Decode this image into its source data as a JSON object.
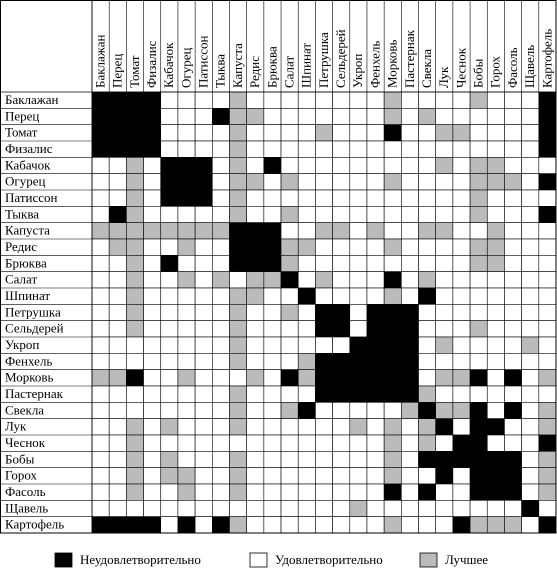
{
  "vegetables": [
    "Баклажан",
    "Перец",
    "Томат",
    "Физалис",
    "Кабачок",
    "Огурец",
    "Патиссон",
    "Тыква",
    "Капуста",
    "Редис",
    "Брюква",
    "Салат",
    "Шпинат",
    "Петрушка",
    "Сельдерей",
    "Укроп",
    "Фенхель",
    "Морковь",
    "Пастернак",
    "Свекла",
    "Лук",
    "Чеснок",
    "Бобы",
    "Горох",
    "Фасоль",
    "Щавель",
    "Картофель"
  ],
  "legend": [
    {
      "label": "Неудовлетворительно",
      "color": "#000"
    },
    {
      "label": "Удовлетворительно",
      "color": "#fff"
    },
    {
      "label": "Лучшее",
      "color": "#bbb"
    }
  ],
  "matrix": [
    [
      "#000",
      "#000",
      "#000",
      "#000",
      "#fff",
      "#fff",
      "#fff",
      "#fff",
      "#bbb",
      "#fff",
      "#fff",
      "#fff",
      "#fff",
      "#fff",
      "#fff",
      "#fff",
      "#fff",
      "#bbb",
      "#fff",
      "#fff",
      "#fff",
      "#fff",
      "#bbb",
      "#fff",
      "#fff",
      "#fff",
      "#000"
    ],
    [
      "#000",
      "#000",
      "#000",
      "#000",
      "#fff",
      "#fff",
      "#fff",
      "#000",
      "#bbb",
      "#bbb",
      "#fff",
      "#fff",
      "#fff",
      "#fff",
      "#fff",
      "#fff",
      "#fff",
      "#bbb",
      "#fff",
      "#bbb",
      "#fff",
      "#fff",
      "#fff",
      "#fff",
      "#fff",
      "#fff",
      "#000"
    ],
    [
      "#000",
      "#000",
      "#000",
      "#000",
      "#fff",
      "#fff",
      "#fff",
      "#fff",
      "#bbb",
      "#fff",
      "#fff",
      "#fff",
      "#fff",
      "#bbb",
      "#fff",
      "#fff",
      "#fff",
      "#000",
      "#fff",
      "#fff",
      "#bbb",
      "#bbb",
      "#fff",
      "#fff",
      "#fff",
      "#fff",
      "#000"
    ],
    [
      "#000",
      "#000",
      "#000",
      "#000",
      "#fff",
      "#fff",
      "#fff",
      "#fff",
      "#bbb",
      "#fff",
      "#fff",
      "#fff",
      "#fff",
      "#fff",
      "#fff",
      "#fff",
      "#fff",
      "#fff",
      "#fff",
      "#fff",
      "#fff",
      "#fff",
      "#fff",
      "#fff",
      "#fff",
      "#fff",
      "#000"
    ],
    [
      "#fff",
      "#fff",
      "#bbb",
      "#fff",
      "#000",
      "#000",
      "#000",
      "#fff",
      "#bbb",
      "#fff",
      "#000",
      "#fff",
      "#fff",
      "#fff",
      "#fff",
      "#fff",
      "#fff",
      "#fff",
      "#fff",
      "#fff",
      "#bbb",
      "#fff",
      "#bbb",
      "#bbb",
      "#fff",
      "#fff",
      "#fff"
    ],
    [
      "#fff",
      "#fff",
      "#bbb",
      "#fff",
      "#000",
      "#000",
      "#000",
      "#fff",
      "#bbb",
      "#bbb",
      "#fff",
      "#bbb",
      "#fff",
      "#fff",
      "#fff",
      "#fff",
      "#fff",
      "#bbb",
      "#fff",
      "#fff",
      "#fff",
      "#fff",
      "#bbb",
      "#bbb",
      "#bbb",
      "#fff",
      "#000"
    ],
    [
      "#fff",
      "#fff",
      "#bbb",
      "#fff",
      "#000",
      "#000",
      "#000",
      "#fff",
      "#bbb",
      "#fff",
      "#fff",
      "#fff",
      "#fff",
      "#fff",
      "#fff",
      "#fff",
      "#fff",
      "#fff",
      "#fff",
      "#fff",
      "#fff",
      "#fff",
      "#bbb",
      "#fff",
      "#fff",
      "#fff",
      "#fff"
    ],
    [
      "#fff",
      "#000",
      "#bbb",
      "#fff",
      "#fff",
      "#fff",
      "#fff",
      "#fff",
      "#bbb",
      "#fff",
      "#fff",
      "#bbb",
      "#fff",
      "#fff",
      "#fff",
      "#fff",
      "#fff",
      "#fff",
      "#fff",
      "#fff",
      "#fff",
      "#fff",
      "#bbb",
      "#fff",
      "#fff",
      "#fff",
      "#000"
    ],
    [
      "#bbb",
      "#bbb",
      "#bbb",
      "#bbb",
      "#bbb",
      "#bbb",
      "#bbb",
      "#bbb",
      "#000",
      "#000",
      "#000",
      "#fff",
      "#fff",
      "#bbb",
      "#bbb",
      "#fff",
      "#bbb",
      "#fff",
      "#fff",
      "#bbb",
      "#bbb",
      "#fff",
      "#fff",
      "#bbb",
      "#fff",
      "#fff",
      "#fff"
    ],
    [
      "#fff",
      "#bbb",
      "#bbb",
      "#fff",
      "#fff",
      "#bbb",
      "#fff",
      "#fff",
      "#000",
      "#000",
      "#000",
      "#bbb",
      "#bbb",
      "#fff",
      "#fff",
      "#fff",
      "#fff",
      "#bbb",
      "#fff",
      "#fff",
      "#fff",
      "#fff",
      "#bbb",
      "#bbb",
      "#fff",
      "#fff",
      "#fff"
    ],
    [
      "#fff",
      "#fff",
      "#bbb",
      "#fff",
      "#000",
      "#fff",
      "#fff",
      "#fff",
      "#000",
      "#000",
      "#000",
      "#bbb",
      "#fff",
      "#fff",
      "#fff",
      "#fff",
      "#fff",
      "#fff",
      "#fff",
      "#fff",
      "#fff",
      "#fff",
      "#bbb",
      "#bbb",
      "#fff",
      "#fff",
      "#fff"
    ],
    [
      "#fff",
      "#fff",
      "#bbb",
      "#fff",
      "#fff",
      "#bbb",
      "#fff",
      "#bbb",
      "#fff",
      "#bbb",
      "#bbb",
      "#000",
      "#fff",
      "#bbb",
      "#fff",
      "#fff",
      "#fff",
      "#000",
      "#fff",
      "#bbb",
      "#fff",
      "#fff",
      "#fff",
      "#fff",
      "#fff",
      "#fff",
      "#fff"
    ],
    [
      "#fff",
      "#fff",
      "#bbb",
      "#fff",
      "#fff",
      "#fff",
      "#fff",
      "#fff",
      "#bbb",
      "#bbb",
      "#fff",
      "#fff",
      "#000",
      "#fff",
      "#fff",
      "#fff",
      "#fff",
      "#bbb",
      "#fff",
      "#000",
      "#fff",
      "#fff",
      "#fff",
      "#fff",
      "#fff",
      "#fff",
      "#fff"
    ],
    [
      "#fff",
      "#fff",
      "#bbb",
      "#fff",
      "#fff",
      "#fff",
      "#fff",
      "#fff",
      "#bbb",
      "#fff",
      "#fff",
      "#bbb",
      "#fff",
      "#000",
      "#000",
      "#fff",
      "#000",
      "#000",
      "#000",
      "#fff",
      "#fff",
      "#fff",
      "#fff",
      "#fff",
      "#fff",
      "#fff",
      "#fff"
    ],
    [
      "#fff",
      "#fff",
      "#bbb",
      "#fff",
      "#fff",
      "#fff",
      "#fff",
      "#fff",
      "#bbb",
      "#fff",
      "#fff",
      "#fff",
      "#fff",
      "#000",
      "#000",
      "#fff",
      "#000",
      "#000",
      "#000",
      "#fff",
      "#fff",
      "#fff",
      "#bbb",
      "#fff",
      "#fff",
      "#fff",
      "#fff"
    ],
    [
      "#fff",
      "#fff",
      "#fff",
      "#fff",
      "#fff",
      "#fff",
      "#fff",
      "#fff",
      "#bbb",
      "#fff",
      "#fff",
      "#fff",
      "#fff",
      "#fff",
      "#fff",
      "#000",
      "#000",
      "#000",
      "#000",
      "#fff",
      "#bbb",
      "#fff",
      "#fff",
      "#fff",
      "#fff",
      "#bbb",
      "#fff"
    ],
    [
      "#fff",
      "#fff",
      "#fff",
      "#fff",
      "#fff",
      "#fff",
      "#fff",
      "#fff",
      "#bbb",
      "#fff",
      "#fff",
      "#fff",
      "#bbb",
      "#000",
      "#000",
      "#000",
      "#000",
      "#000",
      "#000",
      "#fff",
      "#fff",
      "#fff",
      "#fff",
      "#fff",
      "#fff",
      "#fff",
      "#fff"
    ],
    [
      "#bbb",
      "#bbb",
      "#000",
      "#fff",
      "#fff",
      "#bbb",
      "#fff",
      "#fff",
      "#fff",
      "#bbb",
      "#fff",
      "#000",
      "#bbb",
      "#000",
      "#000",
      "#000",
      "#000",
      "#000",
      "#000",
      "#fff",
      "#bbb",
      "#bbb",
      "#000",
      "#fff",
      "#000",
      "#fff",
      "#bbb"
    ],
    [
      "#fff",
      "#fff",
      "#fff",
      "#fff",
      "#fff",
      "#fff",
      "#fff",
      "#fff",
      "#bbb",
      "#fff",
      "#fff",
      "#fff",
      "#fff",
      "#000",
      "#000",
      "#000",
      "#000",
      "#000",
      "#000",
      "#bbb",
      "#fff",
      "#fff",
      "#fff",
      "#fff",
      "#fff",
      "#fff",
      "#fff"
    ],
    [
      "#fff",
      "#fff",
      "#fff",
      "#fff",
      "#fff",
      "#fff",
      "#fff",
      "#fff",
      "#bbb",
      "#fff",
      "#fff",
      "#bbb",
      "#000",
      "#fff",
      "#fff",
      "#fff",
      "#fff",
      "#fff",
      "#bbb",
      "#000",
      "#bbb",
      "#bbb",
      "#000",
      "#fff",
      "#000",
      "#fff",
      "#bbb"
    ],
    [
      "#fff",
      "#fff",
      "#bbb",
      "#fff",
      "#bbb",
      "#fff",
      "#fff",
      "#fff",
      "#bbb",
      "#fff",
      "#fff",
      "#fff",
      "#fff",
      "#fff",
      "#fff",
      "#bbb",
      "#fff",
      "#bbb",
      "#fff",
      "#bbb",
      "#000",
      "#fff",
      "#000",
      "#000",
      "#fff",
      "#fff",
      "#bbb"
    ],
    [
      "#fff",
      "#fff",
      "#bbb",
      "#fff",
      "#fff",
      "#fff",
      "#fff",
      "#fff",
      "#fff",
      "#fff",
      "#fff",
      "#fff",
      "#fff",
      "#fff",
      "#fff",
      "#fff",
      "#fff",
      "#bbb",
      "#fff",
      "#bbb",
      "#fff",
      "#000",
      "#000",
      "#fff",
      "#fff",
      "#fff",
      "#000"
    ],
    [
      "#fff",
      "#fff",
      "#bbb",
      "#fff",
      "#bbb",
      "#fff",
      "#fff",
      "#fff",
      "#bbb",
      "#fff",
      "#fff",
      "#fff",
      "#fff",
      "#fff",
      "#fff",
      "#fff",
      "#fff",
      "#bbb",
      "#fff",
      "#000",
      "#000",
      "#000",
      "#000",
      "#000",
      "#000",
      "#fff",
      "#bbb"
    ],
    [
      "#fff",
      "#fff",
      "#bbb",
      "#fff",
      "#bbb",
      "#bbb",
      "#fff",
      "#fff",
      "#bbb",
      "#fff",
      "#fff",
      "#fff",
      "#fff",
      "#fff",
      "#fff",
      "#fff",
      "#fff",
      "#bbb",
      "#fff",
      "#fff",
      "#000",
      "#fff",
      "#000",
      "#000",
      "#000",
      "#fff",
      "#bbb"
    ],
    [
      "#fff",
      "#fff",
      "#bbb",
      "#fff",
      "#fff",
      "#bbb",
      "#fff",
      "#fff",
      "#bbb",
      "#fff",
      "#fff",
      "#fff",
      "#fff",
      "#fff",
      "#fff",
      "#fff",
      "#fff",
      "#000",
      "#fff",
      "#000",
      "#fff",
      "#fff",
      "#000",
      "#000",
      "#000",
      "#fff",
      "#bbb"
    ],
    [
      "#fff",
      "#fff",
      "#fff",
      "#fff",
      "#fff",
      "#fff",
      "#fff",
      "#fff",
      "#fff",
      "#fff",
      "#fff",
      "#fff",
      "#fff",
      "#fff",
      "#fff",
      "#bbb",
      "#fff",
      "#fff",
      "#fff",
      "#fff",
      "#fff",
      "#fff",
      "#fff",
      "#fff",
      "#fff",
      "#000",
      "#fff"
    ],
    [
      "#000",
      "#000",
      "#000",
      "#000",
      "#fff",
      "#000",
      "#fff",
      "#000",
      "#bbb",
      "#fff",
      "#fff",
      "#fff",
      "#fff",
      "#fff",
      "#fff",
      "#fff",
      "#fff",
      "#bbb",
      "#fff",
      "#fff",
      "#fff",
      "#000",
      "#bbb",
      "#bbb",
      "#bbb",
      "#fff",
      "#000"
    ]
  ]
}
